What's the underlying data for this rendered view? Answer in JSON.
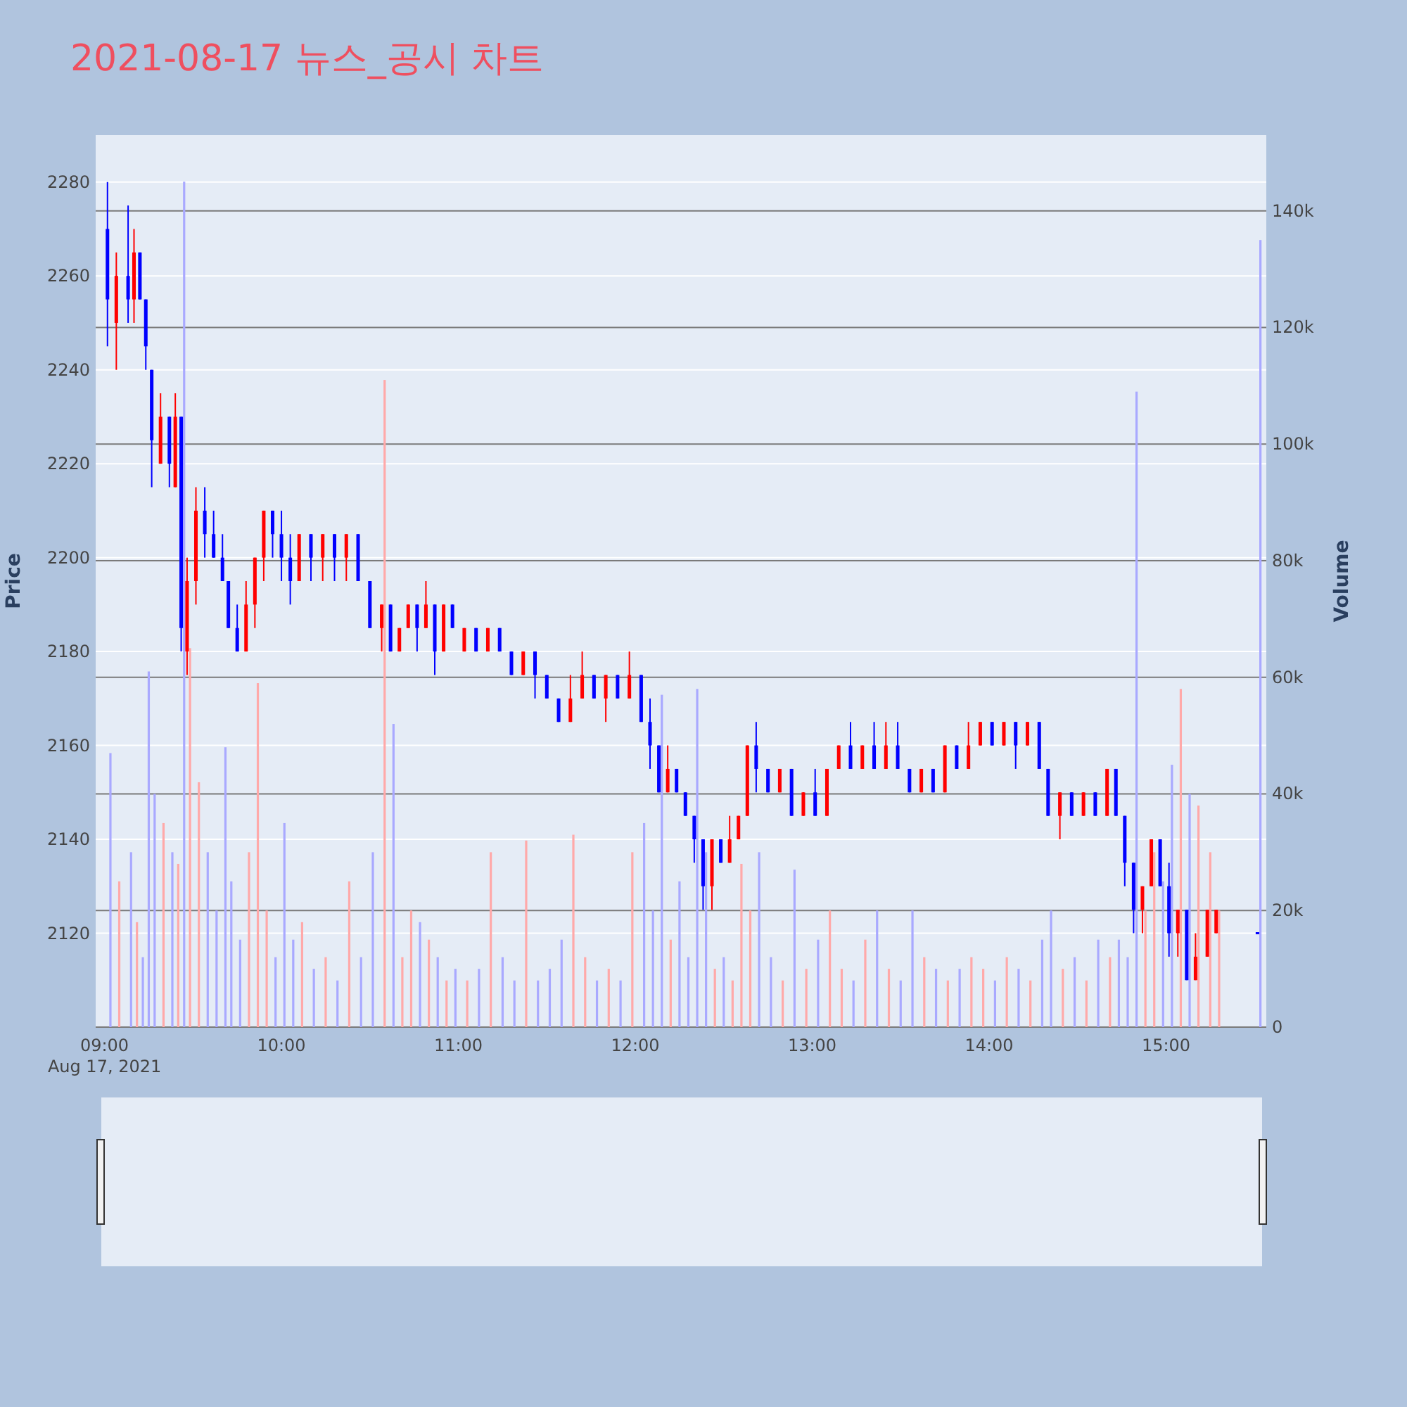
{
  "chart_data": {
    "type": "candlestick",
    "title": "2021-08-17 뉴스_공시 차트",
    "ylabel": "Price",
    "y2label": "Volume",
    "annotations": [
      "Aug 17, 2021"
    ],
    "xlim": [
      "2021-08-17T08:57",
      "2021-08-17T15:34"
    ],
    "xticks": [
      {
        "value": "2021-08-17T09:00",
        "label": "09:00"
      },
      {
        "value": "2021-08-17T10:00",
        "label": "10:00"
      },
      {
        "value": "2021-08-17T11:00",
        "label": "11:00"
      },
      {
        "value": "2021-08-17T12:00",
        "label": "12:00"
      },
      {
        "value": "2021-08-17T13:00",
        "label": "13:00"
      },
      {
        "value": "2021-08-17T14:00",
        "label": "14:00"
      },
      {
        "value": "2021-08-17T15:00",
        "label": "15:00"
      }
    ],
    "ylim": [
      2100,
      2290
    ],
    "yticks": [
      2120,
      2140,
      2160,
      2180,
      2200,
      2220,
      2240,
      2260,
      2280
    ],
    "y2lim": [
      0,
      153000
    ],
    "y2ticks": [
      0,
      {
        "value": 20000,
        "label": "20k"
      },
      {
        "value": 40000,
        "label": "40k"
      },
      {
        "value": 60000,
        "label": "60k"
      },
      {
        "value": 80000,
        "label": "80k"
      },
      {
        "value": 100000,
        "label": "100k"
      },
      {
        "value": 120000,
        "label": "120k"
      },
      {
        "value": 140000,
        "label": "140k"
      }
    ],
    "grid": true,
    "legend": false,
    "x": [
      "2021-08-17T09:01",
      "2021-08-17T09:04",
      "2021-08-17T09:08",
      "2021-08-17T09:10",
      "2021-08-17T09:12",
      "2021-08-17T09:14",
      "2021-08-17T09:16",
      "2021-08-17T09:19",
      "2021-08-17T09:22",
      "2021-08-17T09:24",
      "2021-08-17T09:26",
      "2021-08-17T09:28",
      "2021-08-17T09:31",
      "2021-08-17T09:34",
      "2021-08-17T09:37",
      "2021-08-17T09:40",
      "2021-08-17T09:42",
      "2021-08-17T09:45",
      "2021-08-17T09:48",
      "2021-08-17T09:51",
      "2021-08-17T09:54",
      "2021-08-17T09:57",
      "2021-08-17T10:00",
      "2021-08-17T10:03",
      "2021-08-17T10:06",
      "2021-08-17T10:10",
      "2021-08-17T10:14",
      "2021-08-17T10:18",
      "2021-08-17T10:22",
      "2021-08-17T10:26",
      "2021-08-17T10:30",
      "2021-08-17T10:34",
      "2021-08-17T10:37",
      "2021-08-17T10:40",
      "2021-08-17T10:43",
      "2021-08-17T10:46",
      "2021-08-17T10:49",
      "2021-08-17T10:52",
      "2021-08-17T10:55",
      "2021-08-17T10:58",
      "2021-08-17T11:02",
      "2021-08-17T11:06",
      "2021-08-17T11:10",
      "2021-08-17T11:14",
      "2021-08-17T11:18",
      "2021-08-17T11:22",
      "2021-08-17T11:26",
      "2021-08-17T11:30",
      "2021-08-17T11:34",
      "2021-08-17T11:38",
      "2021-08-17T11:42",
      "2021-08-17T11:46",
      "2021-08-17T11:50",
      "2021-08-17T11:54",
      "2021-08-17T11:58",
      "2021-08-17T12:02",
      "2021-08-17T12:05",
      "2021-08-17T12:08",
      "2021-08-17T12:11",
      "2021-08-17T12:14",
      "2021-08-17T12:17",
      "2021-08-17T12:20",
      "2021-08-17T12:23",
      "2021-08-17T12:26",
      "2021-08-17T12:29",
      "2021-08-17T12:32",
      "2021-08-17T12:35",
      "2021-08-17T12:38",
      "2021-08-17T12:41",
      "2021-08-17T12:45",
      "2021-08-17T12:49",
      "2021-08-17T12:53",
      "2021-08-17T12:57",
      "2021-08-17T13:01",
      "2021-08-17T13:05",
      "2021-08-17T13:09",
      "2021-08-17T13:13",
      "2021-08-17T13:17",
      "2021-08-17T13:21",
      "2021-08-17T13:25",
      "2021-08-17T13:29",
      "2021-08-17T13:33",
      "2021-08-17T13:37",
      "2021-08-17T13:41",
      "2021-08-17T13:45",
      "2021-08-17T13:49",
      "2021-08-17T13:53",
      "2021-08-17T13:57",
      "2021-08-17T14:01",
      "2021-08-17T14:05",
      "2021-08-17T14:09",
      "2021-08-17T14:13",
      "2021-08-17T14:17",
      "2021-08-17T14:20",
      "2021-08-17T14:24",
      "2021-08-17T14:28",
      "2021-08-17T14:32",
      "2021-08-17T14:36",
      "2021-08-17T14:40",
      "2021-08-17T14:43",
      "2021-08-17T14:46",
      "2021-08-17T14:49",
      "2021-08-17T14:52",
      "2021-08-17T14:55",
      "2021-08-17T14:58",
      "2021-08-17T15:01",
      "2021-08-17T15:04",
      "2021-08-17T15:07",
      "2021-08-17T15:10",
      "2021-08-17T15:14",
      "2021-08-17T15:17",
      "2021-08-17T15:31"
    ],
    "series": [
      {
        "ohlc": [
          [
            2270,
            2280,
            2245,
            2255
          ],
          [
            2250,
            2265,
            2240,
            2260
          ],
          [
            2260,
            2275,
            2250,
            2255
          ],
          [
            2255,
            2270,
            2250,
            2265
          ],
          [
            2265,
            2265,
            2255,
            2255
          ],
          [
            2255,
            2255,
            2240,
            2245
          ],
          [
            2240,
            2240,
            2215,
            2225
          ],
          [
            2220,
            2235,
            2220,
            2230
          ],
          [
            2230,
            2230,
            2215,
            2220
          ],
          [
            2215,
            2235,
            2215,
            2230
          ],
          [
            2230,
            2230,
            2180,
            2185
          ],
          [
            2180,
            2200,
            2175,
            2195
          ],
          [
            2195,
            2215,
            2190,
            2210
          ],
          [
            2210,
            2215,
            2200,
            2205
          ],
          [
            2205,
            2210,
            2200,
            2200
          ],
          [
            2200,
            2205,
            2195,
            2195
          ],
          [
            2195,
            2195,
            2185,
            2185
          ],
          [
            2185,
            2190,
            2180,
            2180
          ],
          [
            2180,
            2195,
            2180,
            2190
          ],
          [
            2190,
            2200,
            2185,
            2200
          ],
          [
            2200,
            2210,
            2195,
            2210
          ],
          [
            2210,
            2210,
            2200,
            2205
          ],
          [
            2205,
            2210,
            2195,
            2200
          ],
          [
            2200,
            2205,
            2190,
            2195
          ],
          [
            2195,
            2205,
            2195,
            2205
          ],
          [
            2205,
            2205,
            2195,
            2200
          ],
          [
            2200,
            2205,
            2195,
            2205
          ],
          [
            2205,
            2205,
            2195,
            2200
          ],
          [
            2200,
            2205,
            2195,
            2205
          ],
          [
            2205,
            2205,
            2195,
            2195
          ],
          [
            2195,
            2195,
            2185,
            2185
          ],
          [
            2185,
            2190,
            2180,
            2190
          ],
          [
            2190,
            2190,
            2180,
            2180
          ],
          [
            2180,
            2185,
            2180,
            2185
          ],
          [
            2185,
            2190,
            2185,
            2190
          ],
          [
            2190,
            2190,
            2180,
            2185
          ],
          [
            2185,
            2195,
            2185,
            2190
          ],
          [
            2190,
            2190,
            2175,
            2180
          ],
          [
            2180,
            2190,
            2180,
            2190
          ],
          [
            2190,
            2190,
            2185,
            2185
          ],
          [
            2180,
            2185,
            2180,
            2185
          ],
          [
            2185,
            2185,
            2180,
            2180
          ],
          [
            2180,
            2185,
            2180,
            2185
          ],
          [
            2185,
            2185,
            2180,
            2180
          ],
          [
            2180,
            2180,
            2175,
            2175
          ],
          [
            2175,
            2180,
            2175,
            2180
          ],
          [
            2180,
            2180,
            2170,
            2175
          ],
          [
            2175,
            2175,
            2170,
            2170
          ],
          [
            2170,
            2170,
            2165,
            2165
          ],
          [
            2165,
            2175,
            2165,
            2170
          ],
          [
            2170,
            2180,
            2170,
            2175
          ],
          [
            2175,
            2175,
            2170,
            2170
          ],
          [
            2170,
            2175,
            2165,
            2175
          ],
          [
            2175,
            2175,
            2170,
            2170
          ],
          [
            2170,
            2180,
            2170,
            2175
          ],
          [
            2175,
            2175,
            2165,
            2165
          ],
          [
            2165,
            2170,
            2155,
            2160
          ],
          [
            2160,
            2160,
            2150,
            2150
          ],
          [
            2150,
            2160,
            2150,
            2155
          ],
          [
            2155,
            2155,
            2150,
            2150
          ],
          [
            2150,
            2150,
            2145,
            2145
          ],
          [
            2145,
            2145,
            2135,
            2140
          ],
          [
            2140,
            2140,
            2125,
            2130
          ],
          [
            2130,
            2140,
            2125,
            2140
          ],
          [
            2140,
            2140,
            2135,
            2135
          ],
          [
            2135,
            2145,
            2135,
            2140
          ],
          [
            2140,
            2145,
            2140,
            2145
          ],
          [
            2145,
            2160,
            2145,
            2160
          ],
          [
            2160,
            2165,
            2150,
            2155
          ],
          [
            2155,
            2155,
            2150,
            2150
          ],
          [
            2150,
            2155,
            2150,
            2155
          ],
          [
            2155,
            2155,
            2145,
            2145
          ],
          [
            2145,
            2150,
            2145,
            2150
          ],
          [
            2150,
            2155,
            2145,
            2145
          ],
          [
            2145,
            2155,
            2145,
            2155
          ],
          [
            2155,
            2160,
            2155,
            2160
          ],
          [
            2160,
            2165,
            2155,
            2155
          ],
          [
            2155,
            2160,
            2155,
            2160
          ],
          [
            2160,
            2165,
            2155,
            2155
          ],
          [
            2155,
            2165,
            2155,
            2160
          ],
          [
            2160,
            2165,
            2155,
            2155
          ],
          [
            2155,
            2155,
            2150,
            2150
          ],
          [
            2150,
            2155,
            2150,
            2155
          ],
          [
            2155,
            2155,
            2150,
            2150
          ],
          [
            2150,
            2160,
            2150,
            2160
          ],
          [
            2160,
            2160,
            2155,
            2155
          ],
          [
            2155,
            2165,
            2155,
            2160
          ],
          [
            2160,
            2165,
            2160,
            2165
          ],
          [
            2165,
            2165,
            2160,
            2160
          ],
          [
            2160,
            2165,
            2160,
            2165
          ],
          [
            2165,
            2165,
            2155,
            2160
          ],
          [
            2160,
            2165,
            2160,
            2165
          ],
          [
            2165,
            2165,
            2155,
            2155
          ],
          [
            2155,
            2155,
            2145,
            2145
          ],
          [
            2145,
            2150,
            2140,
            2150
          ],
          [
            2150,
            2150,
            2145,
            2145
          ],
          [
            2145,
            2150,
            2145,
            2150
          ],
          [
            2150,
            2150,
            2145,
            2145
          ],
          [
            2145,
            2155,
            2145,
            2155
          ],
          [
            2155,
            2155,
            2145,
            2145
          ],
          [
            2145,
            2145,
            2130,
            2135
          ],
          [
            2135,
            2135,
            2120,
            2125
          ],
          [
            2125,
            2130,
            2120,
            2130
          ],
          [
            2130,
            2140,
            2130,
            2140
          ],
          [
            2140,
            2140,
            2130,
            2130
          ],
          [
            2130,
            2135,
            2115,
            2120
          ],
          [
            2120,
            2125,
            2115,
            2125
          ],
          [
            2125,
            2125,
            2110,
            2110
          ],
          [
            2110,
            2120,
            2110,
            2115
          ],
          [
            2115,
            2125,
            2115,
            2125
          ],
          [
            2120,
            2125,
            2120,
            2125
          ],
          [
            2120,
            2120,
            2120,
            2120
          ]
        ],
        "colors": [
          "#0000ff",
          "#ff0000",
          "#0000ff",
          "#ff0000",
          "#0000ff",
          "#0000ff",
          "#0000ff",
          "#ff0000",
          "#0000ff",
          "#ff0000",
          "#0000ff",
          "#ff0000",
          "#ff0000",
          "#0000ff",
          "#0000ff",
          "#0000ff",
          "#0000ff",
          "#0000ff",
          "#ff0000",
          "#ff0000",
          "#ff0000",
          "#0000ff",
          "#0000ff",
          "#0000ff",
          "#ff0000",
          "#0000ff",
          "#ff0000",
          "#0000ff",
          "#ff0000",
          "#0000ff",
          "#0000ff",
          "#ff0000",
          "#0000ff",
          "#ff0000",
          "#ff0000",
          "#0000ff",
          "#ff0000",
          "#0000ff",
          "#ff0000",
          "#0000ff",
          "#ff0000",
          "#0000ff",
          "#ff0000",
          "#0000ff",
          "#0000ff",
          "#ff0000",
          "#0000ff",
          "#0000ff",
          "#0000ff",
          "#ff0000",
          "#ff0000",
          "#0000ff",
          "#ff0000",
          "#0000ff",
          "#ff0000",
          "#0000ff",
          "#0000ff",
          "#0000ff",
          "#ff0000",
          "#0000ff",
          "#0000ff",
          "#0000ff",
          "#0000ff",
          "#ff0000",
          "#0000ff",
          "#ff0000",
          "#ff0000",
          "#ff0000",
          "#0000ff",
          "#0000ff",
          "#ff0000",
          "#0000ff",
          "#ff0000",
          "#0000ff",
          "#ff0000",
          "#ff0000",
          "#0000ff",
          "#ff0000",
          "#0000ff",
          "#ff0000",
          "#0000ff",
          "#0000ff",
          "#ff0000",
          "#0000ff",
          "#ff0000",
          "#0000ff",
          "#ff0000",
          "#ff0000",
          "#0000ff",
          "#ff0000",
          "#0000ff",
          "#ff0000",
          "#0000ff",
          "#0000ff",
          "#ff0000",
          "#0000ff",
          "#ff0000",
          "#0000ff",
          "#ff0000",
          "#0000ff",
          "#0000ff",
          "#0000ff",
          "#ff0000",
          "#ff0000",
          "#0000ff",
          "#0000ff",
          "#ff0000",
          "#0000ff",
          "#ff0000",
          "#ff0000",
          "#ff0000",
          "#0000ff"
        ]
      },
      {
        "type": "bar",
        "axis": "y2",
        "x": [
          "2021-08-17T09:02",
          "2021-08-17T09:05",
          "2021-08-17T09:09",
          "2021-08-17T09:11",
          "2021-08-17T09:13",
          "2021-08-17T09:15",
          "2021-08-17T09:17",
          "2021-08-17T09:20",
          "2021-08-17T09:23",
          "2021-08-17T09:25",
          "2021-08-17T09:27",
          "2021-08-17T09:29",
          "2021-08-17T09:32",
          "2021-08-17T09:35",
          "2021-08-17T09:38",
          "2021-08-17T09:41",
          "2021-08-17T09:43",
          "2021-08-17T09:46",
          "2021-08-17T09:49",
          "2021-08-17T09:52",
          "2021-08-17T09:55",
          "2021-08-17T09:58",
          "2021-08-17T10:01",
          "2021-08-17T10:04",
          "2021-08-17T10:07",
          "2021-08-17T10:11",
          "2021-08-17T10:15",
          "2021-08-17T10:19",
          "2021-08-17T10:23",
          "2021-08-17T10:27",
          "2021-08-17T10:31",
          "2021-08-17T10:35",
          "2021-08-17T10:38",
          "2021-08-17T10:41",
          "2021-08-17T10:44",
          "2021-08-17T10:47",
          "2021-08-17T10:50",
          "2021-08-17T10:53",
          "2021-08-17T10:56",
          "2021-08-17T10:59",
          "2021-08-17T11:03",
          "2021-08-17T11:07",
          "2021-08-17T11:11",
          "2021-08-17T11:15",
          "2021-08-17T11:19",
          "2021-08-17T11:23",
          "2021-08-17T11:27",
          "2021-08-17T11:31",
          "2021-08-17T11:35",
          "2021-08-17T11:39",
          "2021-08-17T11:43",
          "2021-08-17T11:47",
          "2021-08-17T11:51",
          "2021-08-17T11:55",
          "2021-08-17T11:59",
          "2021-08-17T12:03",
          "2021-08-17T12:06",
          "2021-08-17T12:09",
          "2021-08-17T12:12",
          "2021-08-17T12:15",
          "2021-08-17T12:18",
          "2021-08-17T12:21",
          "2021-08-17T12:24",
          "2021-08-17T12:27",
          "2021-08-17T12:30",
          "2021-08-17T12:33",
          "2021-08-17T12:36",
          "2021-08-17T12:39",
          "2021-08-17T12:42",
          "2021-08-17T12:46",
          "2021-08-17T12:50",
          "2021-08-17T12:54",
          "2021-08-17T12:58",
          "2021-08-17T13:02",
          "2021-08-17T13:06",
          "2021-08-17T13:10",
          "2021-08-17T13:14",
          "2021-08-17T13:18",
          "2021-08-17T13:22",
          "2021-08-17T13:26",
          "2021-08-17T13:30",
          "2021-08-17T13:34",
          "2021-08-17T13:38",
          "2021-08-17T13:42",
          "2021-08-17T13:46",
          "2021-08-17T13:50",
          "2021-08-17T13:54",
          "2021-08-17T13:58",
          "2021-08-17T14:02",
          "2021-08-17T14:06",
          "2021-08-17T14:10",
          "2021-08-17T14:14",
          "2021-08-17T14:18",
          "2021-08-17T14:21",
          "2021-08-17T14:25",
          "2021-08-17T14:29",
          "2021-08-17T14:33",
          "2021-08-17T14:37",
          "2021-08-17T14:41",
          "2021-08-17T14:44",
          "2021-08-17T14:47",
          "2021-08-17T14:50",
          "2021-08-17T14:53",
          "2021-08-17T14:56",
          "2021-08-17T14:59",
          "2021-08-17T15:02",
          "2021-08-17T15:05",
          "2021-08-17T15:08",
          "2021-08-17T15:11",
          "2021-08-17T15:15",
          "2021-08-17T15:18",
          "2021-08-17T15:32"
        ],
        "values": [
          47000,
          25000,
          30000,
          18000,
          12000,
          61000,
          40000,
          35000,
          30000,
          28000,
          145000,
          65000,
          42000,
          30000,
          20000,
          48000,
          25000,
          15000,
          30000,
          59000,
          20000,
          12000,
          35000,
          15000,
          18000,
          10000,
          12000,
          8000,
          25000,
          12000,
          30000,
          111000,
          52000,
          12000,
          20000,
          18000,
          15000,
          12000,
          8000,
          10000,
          8000,
          10000,
          30000,
          12000,
          8000,
          32000,
          8000,
          10000,
          15000,
          33000,
          12000,
          8000,
          10000,
          8000,
          30000,
          35000,
          20000,
          57000,
          15000,
          25000,
          12000,
          58000,
          30000,
          10000,
          12000,
          8000,
          28000,
          20000,
          30000,
          12000,
          8000,
          27000,
          10000,
          15000,
          20000,
          10000,
          8000,
          15000,
          20000,
          10000,
          8000,
          20000,
          12000,
          10000,
          8000,
          10000,
          12000,
          10000,
          8000,
          12000,
          10000,
          8000,
          15000,
          20000,
          10000,
          12000,
          8000,
          15000,
          12000,
          15000,
          12000,
          109000,
          20000,
          30000,
          25000,
          45000,
          58000,
          40000,
          38000,
          30000,
          20000,
          135000
        ],
        "colors": [
          "#a9a9ff",
          "#ffa9a9",
          "#a9a9ff",
          "#ffa9a9",
          "#a9a9ff",
          "#a9a9ff",
          "#a9a9ff",
          "#ffa9a9",
          "#a9a9ff",
          "#ffa9a9",
          "#a9a9ff",
          "#ffa9a9",
          "#ffa9a9",
          "#a9a9ff",
          "#a9a9ff",
          "#a9a9ff",
          "#a9a9ff",
          "#a9a9ff",
          "#ffa9a9",
          "#ffa9a9",
          "#ffa9a9",
          "#a9a9ff",
          "#a9a9ff",
          "#a9a9ff",
          "#ffa9a9",
          "#a9a9ff",
          "#ffa9a9",
          "#a9a9ff",
          "#ffa9a9",
          "#a9a9ff",
          "#a9a9ff",
          "#ffa9a9",
          "#a9a9ff",
          "#ffa9a9",
          "#ffa9a9",
          "#a9a9ff",
          "#ffa9a9",
          "#a9a9ff",
          "#ffa9a9",
          "#a9a9ff",
          "#ffa9a9",
          "#a9a9ff",
          "#ffa9a9",
          "#a9a9ff",
          "#a9a9ff",
          "#ffa9a9",
          "#a9a9ff",
          "#a9a9ff",
          "#a9a9ff",
          "#ffa9a9",
          "#ffa9a9",
          "#a9a9ff",
          "#ffa9a9",
          "#a9a9ff",
          "#ffa9a9",
          "#a9a9ff",
          "#a9a9ff",
          "#a9a9ff",
          "#ffa9a9",
          "#a9a9ff",
          "#a9a9ff",
          "#a9a9ff",
          "#a9a9ff",
          "#ffa9a9",
          "#a9a9ff",
          "#ffa9a9",
          "#ffa9a9",
          "#ffa9a9",
          "#a9a9ff",
          "#a9a9ff",
          "#ffa9a9",
          "#a9a9ff",
          "#ffa9a9",
          "#a9a9ff",
          "#ffa9a9",
          "#ffa9a9",
          "#a9a9ff",
          "#ffa9a9",
          "#a9a9ff",
          "#ffa9a9",
          "#a9a9ff",
          "#a9a9ff",
          "#ffa9a9",
          "#a9a9ff",
          "#ffa9a9",
          "#a9a9ff",
          "#ffa9a9",
          "#ffa9a9",
          "#a9a9ff",
          "#ffa9a9",
          "#a9a9ff",
          "#ffa9a9",
          "#a9a9ff",
          "#a9a9ff",
          "#ffa9a9",
          "#a9a9ff",
          "#ffa9a9",
          "#a9a9ff",
          "#ffa9a9",
          "#a9a9ff",
          "#a9a9ff",
          "#a9a9ff",
          "#ffa9a9",
          "#ffa9a9",
          "#a9a9ff",
          "#a9a9ff",
          "#ffa9a9",
          "#a9a9ff",
          "#ffa9a9",
          "#ffa9a9",
          "#ffa9a9",
          "#a9a9ff"
        ]
      }
    ]
  }
}
